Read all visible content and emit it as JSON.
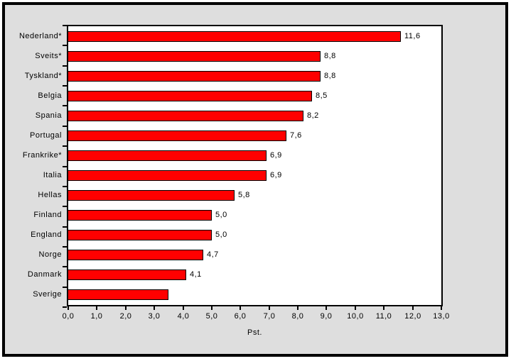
{
  "chart_data": {
    "type": "bar",
    "orientation": "horizontal",
    "title": "",
    "xlabel": "Pst.",
    "ylabel": "",
    "xlim": [
      0,
      13
    ],
    "grid": false,
    "legend": "none",
    "categories": [
      "Nederland*",
      "Sveits*",
      "Tyskland*",
      "Belgia",
      "Spania",
      "Portugal",
      "Frankrike*",
      "Italia",
      "Hellas",
      "Finland",
      "England",
      "Norge",
      "Danmark",
      "Sverige"
    ],
    "values": [
      11.6,
      8.8,
      8.8,
      8.5,
      8.2,
      7.6,
      6.9,
      6.9,
      5.8,
      5.0,
      5.0,
      4.7,
      4.1,
      3.5
    ],
    "data_labels": [
      "11,6",
      "8,8",
      "8,8",
      "8,5",
      "8,2",
      "7,6",
      "6,9",
      "6,9",
      "5,8",
      "5,0",
      "5,0",
      "4,7",
      "4,1",
      ""
    ],
    "x_ticks": [
      "0,0",
      "1,0",
      "2,0",
      "3,0",
      "4,0",
      "5,0",
      "6,0",
      "7,0",
      "8,0",
      "9,0",
      "10,0",
      "11,0",
      "12,0",
      "13,0"
    ],
    "x_tick_values": [
      0,
      1,
      2,
      3,
      4,
      5,
      6,
      7,
      8,
      9,
      10,
      11,
      12,
      13
    ],
    "colors": {
      "bar_fill": "#ff0000",
      "bar_border": "#000000",
      "plot_background": "#ffffff",
      "chart_background": "#dedede",
      "frame_border": "#000000",
      "text": "#000000"
    }
  }
}
